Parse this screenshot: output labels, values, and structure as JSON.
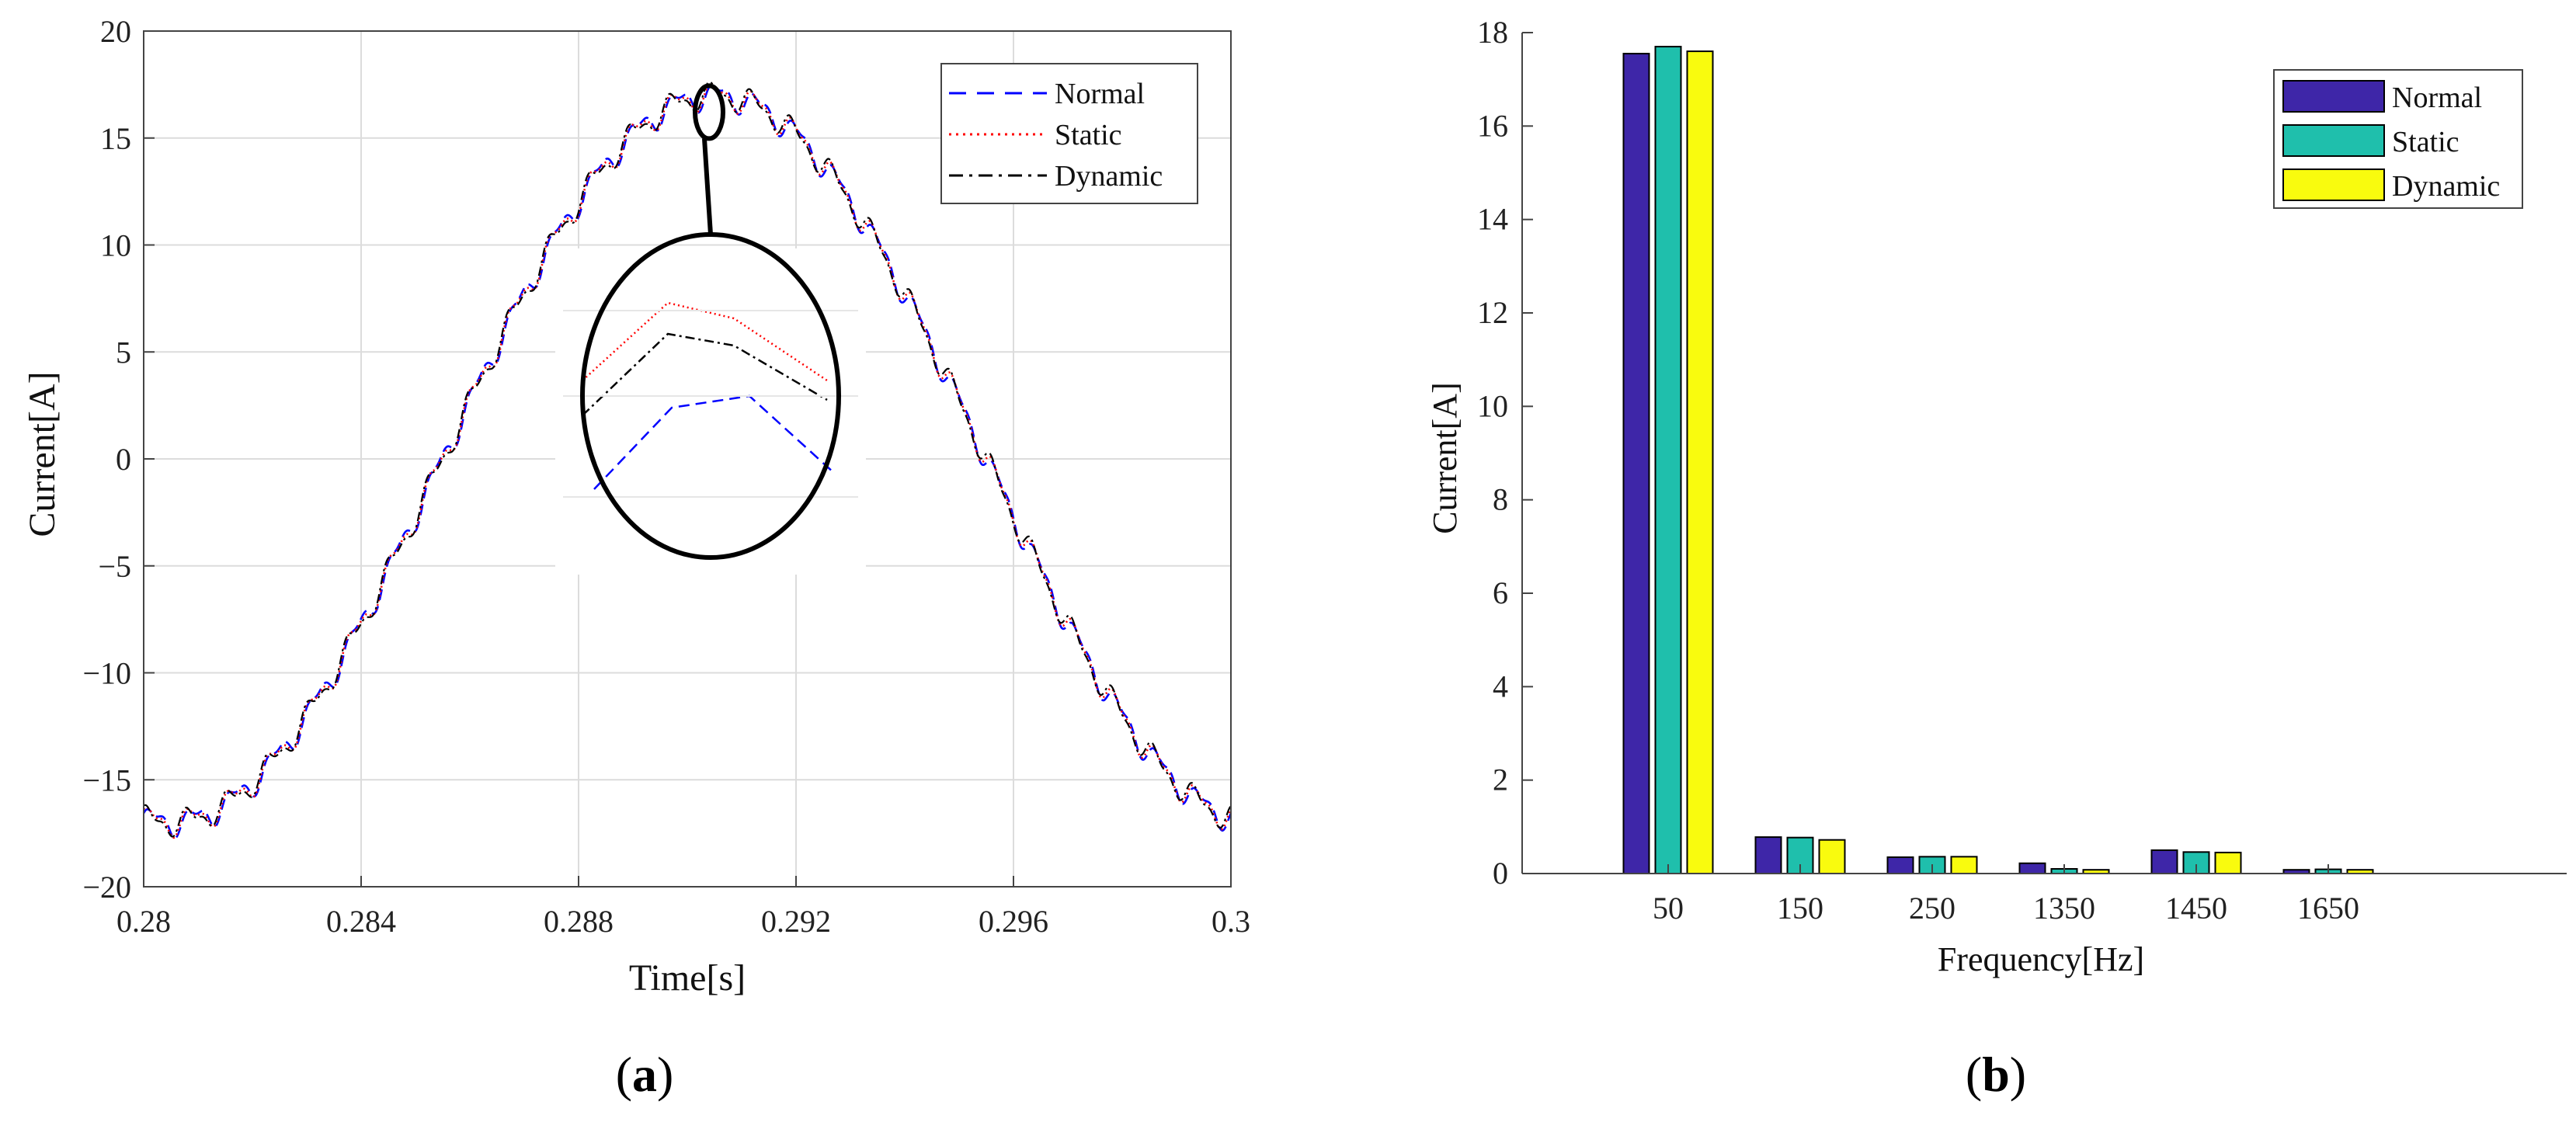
{
  "colors": {
    "normal": "#0000ff",
    "static": "#ff0000",
    "dynamic": "#000000",
    "bar_normal": "#3e26a8",
    "bar_static": "#1fbfac",
    "bar_dynamic": "#f9fb0e",
    "grid": "#dcdcdc",
    "axis": "#444444"
  },
  "panels": {
    "a": {
      "label_letter": "a",
      "open": "(",
      "close": ")"
    },
    "b": {
      "label_letter": "b",
      "open": "(",
      "close": ")"
    }
  },
  "chart_data": [
    {
      "id": "a",
      "type": "line",
      "title": "",
      "xlabel": "Time[s]",
      "ylabel": "Current[A]",
      "xlim": [
        0.28,
        0.3
      ],
      "ylim": [
        -20,
        20
      ],
      "xticks": [
        0.28,
        0.284,
        0.288,
        0.292,
        0.296,
        0.3
      ],
      "xtick_labels": [
        "0.28",
        "0.284",
        "0.288",
        "0.292",
        "0.296",
        "0.3"
      ],
      "yticks": [
        20,
        15,
        10,
        5,
        0,
        -5,
        -10,
        -15,
        -20
      ],
      "ytick_labels": [
        "20",
        "15",
        "10",
        "5",
        "0",
        "−5",
        "−10",
        "−15",
        "−20"
      ],
      "grid": true,
      "legend_position": "top-right",
      "series": [
        {
          "name": "Normal",
          "style": "dashed"
        },
        {
          "name": "Static",
          "style": "dotted"
        },
        {
          "name": "Dynamic",
          "style": "dash-dot"
        }
      ],
      "waveform": {
        "description_values": "approximately sinusoidal 50 Hz current with step ripple",
        "fundamental_hz": 50,
        "peak_time_s": 0.2905,
        "amplitude_a": 17.0,
        "ripple_hz": 1350,
        "ripple_amplitude_a": 0.5
      },
      "zoom_inset": {
        "center_time_s": 0.2904,
        "center_current_a": 16.5
      }
    },
    {
      "id": "b",
      "type": "bar",
      "title": "",
      "xlabel": "Frequency[Hz]",
      "ylabel": "Current[A]",
      "ylim": [
        0,
        18
      ],
      "yticks": [
        0,
        2,
        4,
        6,
        8,
        10,
        12,
        14,
        16,
        18
      ],
      "grid": false,
      "legend_position": "top-right",
      "categories": [
        "50",
        "150",
        "250",
        "1350",
        "1450",
        "1650"
      ],
      "series": [
        {
          "name": "Normal",
          "values": [
            17.55,
            0.78,
            0.35,
            0.22,
            0.5,
            0.08
          ]
        },
        {
          "name": "Static",
          "values": [
            17.7,
            0.77,
            0.36,
            0.1,
            0.46,
            0.09
          ]
        },
        {
          "name": "Dynamic",
          "values": [
            17.6,
            0.72,
            0.36,
            0.08,
            0.45,
            0.08
          ]
        }
      ]
    }
  ]
}
